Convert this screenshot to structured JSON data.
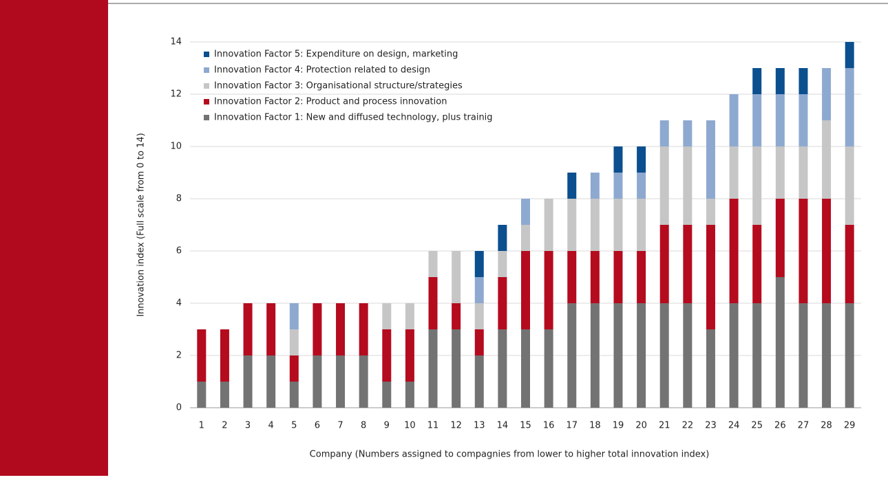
{
  "chart_data": {
    "type": "stacked_bar",
    "y_label": "Innovation index (Full scale from 0 to 14)",
    "x_label": "Company (Numbers assigned to compagnies from lower to higher total innovation index)",
    "categories": [
      "1",
      "2",
      "3",
      "4",
      "5",
      "6",
      "7",
      "8",
      "9",
      "10",
      "11",
      "12",
      "13",
      "14",
      "15",
      "16",
      "17",
      "18",
      "19",
      "20",
      "21",
      "22",
      "23",
      "24",
      "25",
      "26",
      "27",
      "28",
      "29"
    ],
    "series": [
      {
        "name": "Innovation Factor 1: New and diffused technology, plus trainig",
        "color": "#737373",
        "values": [
          1,
          1,
          2,
          2,
          1,
          2,
          2,
          2,
          1,
          1,
          3,
          3,
          2,
          3,
          3,
          3,
          4,
          4,
          4,
          4,
          4,
          4,
          3,
          4,
          4,
          5,
          4,
          4,
          4
        ]
      },
      {
        "name": "Innovation Factor 2: Product and process innovation",
        "color": "#b50b1e",
        "values": [
          2,
          2,
          2,
          2,
          1,
          2,
          2,
          2,
          2,
          2,
          2,
          1,
          1,
          2,
          3,
          3,
          2,
          2,
          2,
          2,
          3,
          3,
          4,
          4,
          3,
          3,
          4,
          4,
          3
        ]
      },
      {
        "name": "Innovation Factor 3: Organisational structure/strategies",
        "color": "#c6c6c6",
        "values": [
          0,
          0,
          0,
          0,
          1,
          0,
          0,
          0,
          1,
          1,
          1,
          2,
          1,
          1,
          1,
          2,
          2,
          2,
          2,
          2,
          3,
          3,
          1,
          2,
          3,
          2,
          2,
          3,
          3
        ]
      },
      {
        "name": "Innovation Factor 4: Protection related to design",
        "color": "#8ea9d0",
        "values": [
          0,
          0,
          0,
          0,
          1,
          0,
          0,
          0,
          0,
          0,
          0,
          0,
          1,
          0,
          1,
          0,
          0,
          1,
          1,
          1,
          1,
          1,
          3,
          2,
          2,
          2,
          2,
          2,
          3
        ]
      },
      {
        "name": "Innovation Factor 5: Expenditure on design, marketing",
        "color": "#0b4f8f",
        "values": [
          0,
          0,
          0,
          0,
          0,
          0,
          0,
          0,
          0,
          0,
          0,
          0,
          1,
          1,
          0,
          0,
          1,
          0,
          1,
          1,
          0,
          0,
          0,
          0,
          1,
          1,
          1,
          0,
          1
        ]
      }
    ],
    "ylim": [
      0,
      14
    ],
    "yticks": [
      0,
      2,
      4,
      6,
      8,
      10,
      12,
      14
    ],
    "grid": true,
    "legend": "top-left"
  }
}
